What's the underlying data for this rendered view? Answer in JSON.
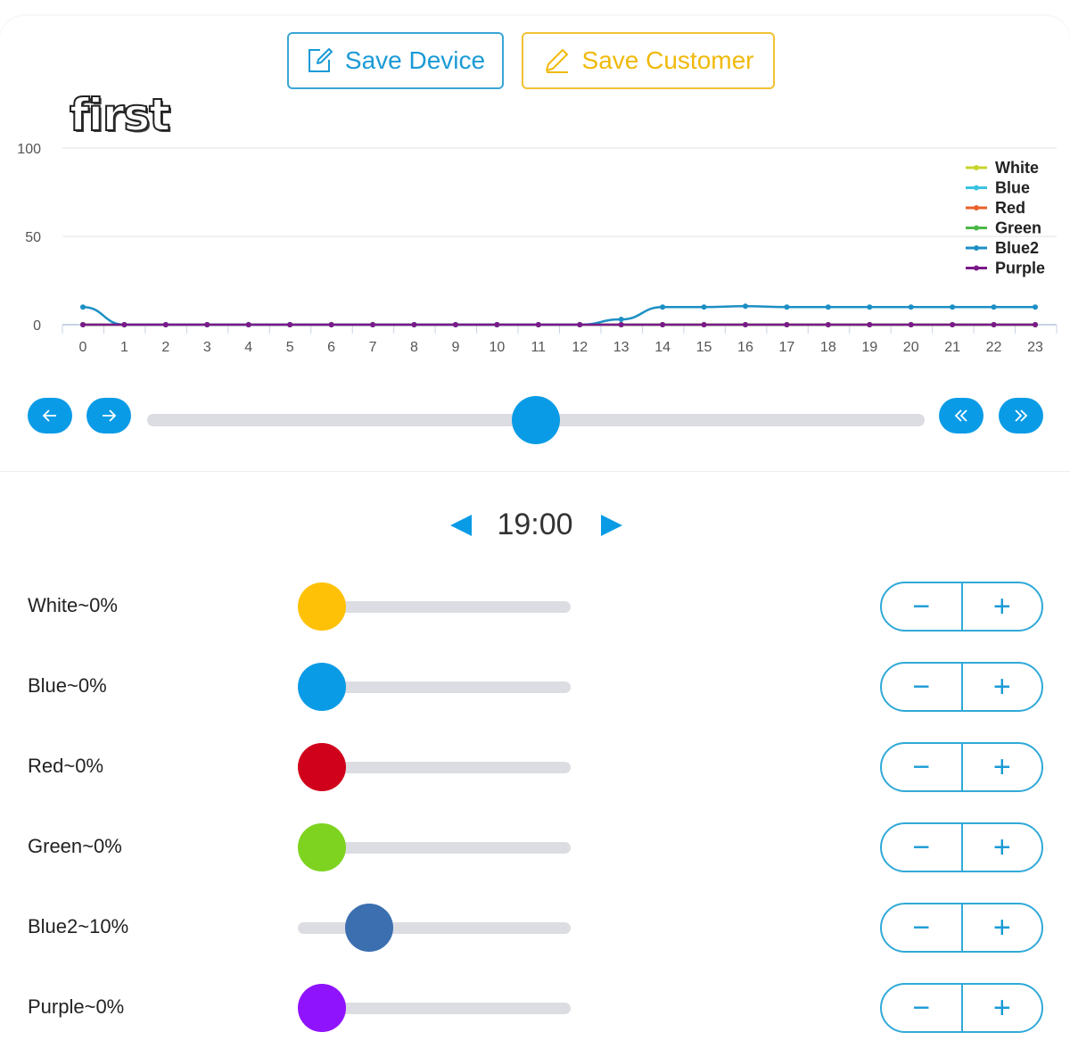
{
  "header": {
    "save_device_label": "Save Device",
    "save_customer_label": "Save Customer",
    "profile_name": "first"
  },
  "chart_data": {
    "type": "line",
    "x": [
      0,
      1,
      2,
      3,
      4,
      5,
      6,
      7,
      8,
      9,
      10,
      11,
      12,
      13,
      14,
      15,
      16,
      17,
      18,
      19,
      20,
      21,
      22,
      23
    ],
    "ylim": [
      0,
      100
    ],
    "yticks": [
      0,
      50,
      100
    ],
    "grid": true,
    "legend_position": "top-right",
    "series": [
      {
        "name": "White",
        "color": "#c8d42a",
        "values": [
          0,
          0,
          0,
          0,
          0,
          0,
          0,
          0,
          0,
          0,
          0,
          0,
          0,
          0,
          0,
          0,
          0,
          0,
          0,
          0,
          0,
          0,
          0,
          0
        ]
      },
      {
        "name": "Blue",
        "color": "#39c3df",
        "values": [
          0,
          0,
          0,
          0,
          0,
          0,
          0,
          0,
          0,
          0,
          0,
          0,
          0,
          0,
          0,
          0,
          0,
          0,
          0,
          0,
          0,
          0,
          0,
          0
        ]
      },
      {
        "name": "Red",
        "color": "#e8602a",
        "values": [
          0,
          0,
          0,
          0,
          0,
          0,
          0,
          0,
          0,
          0,
          0,
          0,
          0,
          0,
          0,
          0,
          0,
          0,
          0,
          0,
          0,
          0,
          0,
          0
        ]
      },
      {
        "name": "Green",
        "color": "#4db848",
        "values": [
          0,
          0,
          0,
          0,
          0,
          0,
          0,
          0,
          0,
          0,
          0,
          0,
          0,
          0,
          0,
          0,
          0,
          0,
          0,
          0,
          0,
          0,
          0,
          0
        ]
      },
      {
        "name": "Blue2",
        "color": "#1c8fc4",
        "values": [
          10,
          0,
          0,
          0,
          0,
          0,
          0,
          0,
          0,
          0,
          0,
          0,
          0,
          3,
          10,
          10,
          10.5,
          10,
          10,
          10,
          10,
          10,
          10,
          10
        ]
      },
      {
        "name": "Purple",
        "color": "#7b1a8a",
        "values": [
          0,
          0,
          0,
          0,
          0,
          0,
          0,
          0,
          0,
          0,
          0,
          0,
          0,
          0,
          0,
          0,
          0,
          0,
          0,
          0,
          0,
          0,
          0,
          0
        ]
      }
    ]
  },
  "timeline": {
    "prev_icon": "arrow-left-icon",
    "next_icon": "arrow-right-icon",
    "fast_back_icon": "double-chevron-left-icon",
    "fast_forward_icon": "double-chevron-right-icon",
    "position": 0.5
  },
  "time": {
    "value": "19:00"
  },
  "channels": [
    {
      "label": "White~0%",
      "color": "#ffc107",
      "value": 0
    },
    {
      "label": "Blue~0%",
      "color": "#0a9be6",
      "value": 0
    },
    {
      "label": "Red~0%",
      "color": "#d0021b",
      "value": 0
    },
    {
      "label": "Green~0%",
      "color": "#7ed321",
      "value": 0
    },
    {
      "label": "Blue2~10%",
      "color": "#3b6fb0",
      "value": 10
    },
    {
      "label": "Purple~0%",
      "color": "#9013fe",
      "value": 0
    }
  ],
  "stepper": {
    "minus": "−",
    "plus": "+"
  }
}
